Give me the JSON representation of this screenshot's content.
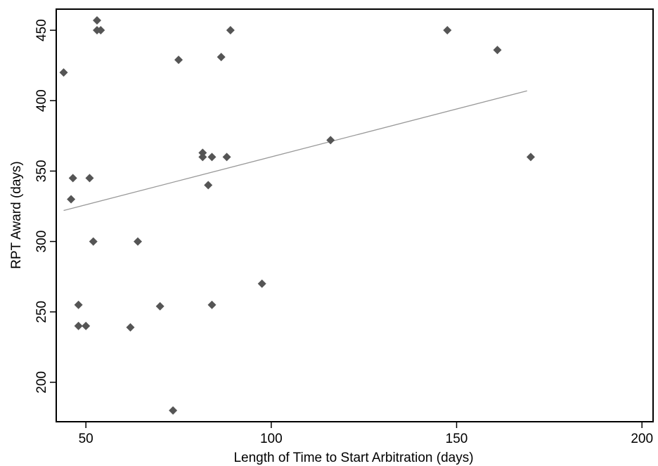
{
  "chart_data": {
    "type": "scatter",
    "title": "",
    "xlabel": "Length of Time to Start Arbitration (days)",
    "ylabel": "RPT Award (days)",
    "xlim": [
      42,
      203
    ],
    "ylim": [
      172,
      465
    ],
    "x_ticks": [
      50,
      100,
      150,
      200
    ],
    "y_ticks": [
      200,
      250,
      300,
      350,
      400,
      450
    ],
    "x_tick_labels": [
      "50",
      "100",
      "150",
      "200"
    ],
    "y_tick_labels": [
      "200",
      "250",
      "300",
      "350",
      "400",
      "450"
    ],
    "grid": false,
    "series": [
      {
        "points": [
          {
            "x": 44,
            "y": 420
          },
          {
            "x": 46,
            "y": 330
          },
          {
            "x": 46.5,
            "y": 345
          },
          {
            "x": 48,
            "y": 255
          },
          {
            "x": 48,
            "y": 240
          },
          {
            "x": 50,
            "y": 240
          },
          {
            "x": 51,
            "y": 345
          },
          {
            "x": 52,
            "y": 300
          },
          {
            "x": 53,
            "y": 457
          },
          {
            "x": 53,
            "y": 450
          },
          {
            "x": 54,
            "y": 450
          },
          {
            "x": 62,
            "y": 239
          },
          {
            "x": 64,
            "y": 300
          },
          {
            "x": 70,
            "y": 254
          },
          {
            "x": 73.5,
            "y": 180
          },
          {
            "x": 75,
            "y": 429
          },
          {
            "x": 81.5,
            "y": 363
          },
          {
            "x": 81.5,
            "y": 360
          },
          {
            "x": 83,
            "y": 340
          },
          {
            "x": 84,
            "y": 360
          },
          {
            "x": 84,
            "y": 255
          },
          {
            "x": 86.5,
            "y": 431
          },
          {
            "x": 88,
            "y": 360
          },
          {
            "x": 89,
            "y": 450
          },
          {
            "x": 97.5,
            "y": 270
          },
          {
            "x": 116,
            "y": 372
          },
          {
            "x": 147.5,
            "y": 450
          },
          {
            "x": 161,
            "y": 436
          },
          {
            "x": 170,
            "y": 360
          }
        ]
      }
    ],
    "fit_line": {
      "x": [
        44,
        169
      ],
      "y": [
        322,
        407
      ]
    },
    "colors": {
      "marker": "#555555",
      "fit_line": "#999999",
      "axis": "#000000"
    }
  }
}
